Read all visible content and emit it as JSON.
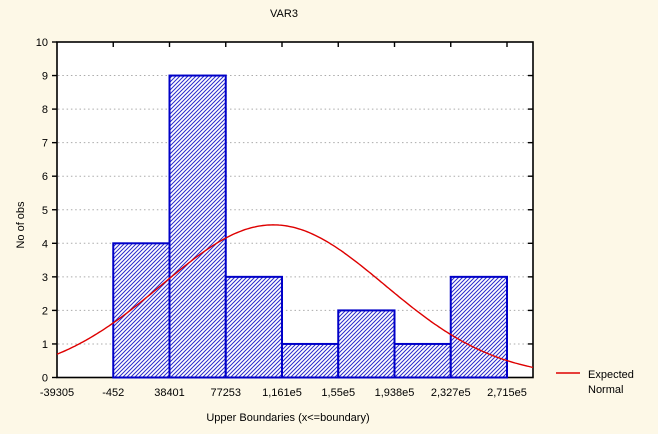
{
  "title": "VAR3",
  "colors": {
    "background": "#FDF8E7",
    "plot_background": "#FFFFFF",
    "bar_outline": "#0000C8",
    "bar_hatch": "#2A2ACC",
    "curve": "#DE0000",
    "grid": "#ABABAB",
    "axis": "#000000",
    "text": "#000000"
  },
  "chart_data": {
    "type": "bar",
    "subtype": "histogram-with-normal-curve",
    "title": "VAR3",
    "xlabel": "Upper Boundaries (x<=boundary)",
    "ylabel": "No of obs",
    "x_tick_labels": [
      "-39305",
      "-452",
      "38401",
      "77253",
      "1,161e5",
      "1,55e5",
      "1,938e5",
      "2,327e5",
      "2,715e5"
    ],
    "x_tick_values": [
      -39305,
      -452,
      38401,
      77253,
      116100,
      155000,
      193800,
      232700,
      271500
    ],
    "y_ticks": [
      0,
      1,
      2,
      3,
      4,
      5,
      6,
      7,
      8,
      9,
      10
    ],
    "ylim": [
      0,
      10
    ],
    "bar_counts": [
      0,
      4,
      9,
      3,
      1,
      2,
      1,
      3
    ],
    "bar_intervals_note": "counts of observations per interval between consecutive upper boundaries",
    "grid": "horizontal dotted lines at integer y values",
    "legend": {
      "position": "right-bottom",
      "label_line1": "Expected",
      "label_line2": "Normal"
    },
    "normal_curve": {
      "mean": 110000,
      "sigma": 77000,
      "peak": 4.55,
      "description": "expected normal density scaled to counts, drawn across full x range"
    }
  }
}
